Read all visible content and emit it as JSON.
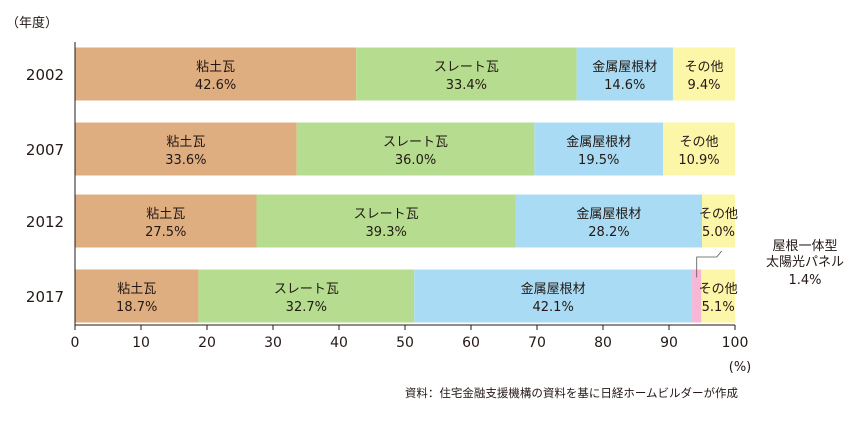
{
  "chart_data": {
    "type": "bar",
    "orientation": "horizontal",
    "stacked": true,
    "y_axis_unit_label": "（年度）",
    "x_axis_unit_label": "(%)",
    "xlim": [
      0,
      100
    ],
    "x_ticks": [
      0,
      10,
      20,
      30,
      40,
      50,
      60,
      70,
      80,
      90,
      100
    ],
    "categories": [
      "2002",
      "2007",
      "2012",
      "2017"
    ],
    "series": [
      {
        "name": "粘土瓦",
        "color": "#dfae80",
        "values": [
          42.6,
          33.6,
          27.5,
          18.7
        ]
      },
      {
        "name": "スレート瓦",
        "color": "#b6dd8f",
        "values": [
          33.4,
          36.0,
          39.3,
          32.7
        ]
      },
      {
        "name": "金属屋根材",
        "color": "#a9dcf4",
        "values": [
          14.6,
          19.5,
          28.2,
          42.1
        ]
      },
      {
        "name": "屋根一体型太陽光パネル",
        "label_lines": [
          "屋根一体型",
          "太陽光パネル"
        ],
        "color": "#f6b8d6",
        "values": [
          null,
          null,
          null,
          1.4
        ]
      },
      {
        "name": "その他",
        "color": "#fbf6a8",
        "values": [
          9.4,
          10.9,
          5.0,
          5.1
        ]
      }
    ],
    "value_labels": [
      [
        "42.6%",
        "33.4%",
        "14.6%",
        null,
        "9.4%"
      ],
      [
        "33.6%",
        "36.0%",
        "19.5%",
        null,
        "10.9%"
      ],
      [
        "27.5%",
        "39.3%",
        "28.2%",
        null,
        "5.0%"
      ],
      [
        "18.7%",
        "32.7%",
        "42.1%",
        "1.4%",
        "5.1%"
      ]
    ],
    "callout_series": "屋根一体型太陽光パネル",
    "grid": false,
    "legend": "none"
  },
  "source_note": "資料：住宅金融支援機構の資料を基に日経ホームビルダーが作成"
}
